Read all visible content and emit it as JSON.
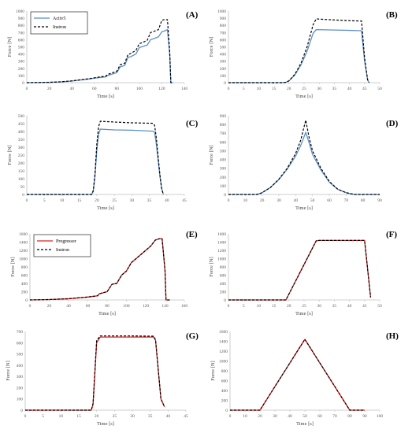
{
  "figure": {
    "colors": {
      "axis": "#bfbfbf",
      "tick_text": "#595959",
      "label_text": "#404040"
    }
  },
  "chart_data": [
    {
      "panel": "(A)",
      "type": "line",
      "xlabel": "Time [s]",
      "ylabel": "Force [N]",
      "xlim": [
        0,
        140
      ],
      "ylim": [
        0,
        1000
      ],
      "xticks": [
        0,
        20,
        40,
        60,
        80,
        100,
        120,
        140
      ],
      "yticks": [
        0,
        100,
        200,
        300,
        400,
        500,
        600,
        700,
        800,
        900,
        1000
      ],
      "legend": {
        "position": "top-left",
        "entries": [
          "Activ5",
          "Instron"
        ]
      },
      "series": [
        {
          "name": "Activ5",
          "color": "#5b8fc9",
          "dash": "solid",
          "x": [
            0,
            10,
            20,
            30,
            40,
            50,
            55,
            60,
            65,
            70,
            72,
            80,
            83,
            87,
            90,
            92,
            97,
            100,
            102,
            107,
            110,
            112,
            117,
            120,
            122,
            125,
            127,
            128,
            130
          ],
          "y": [
            0,
            2,
            5,
            10,
            22,
            42,
            50,
            62,
            72,
            80,
            100,
            140,
            220,
            240,
            355,
            360,
            400,
            490,
            500,
            525,
            600,
            610,
            640,
            710,
            720,
            740,
            400,
            0,
            0
          ]
        },
        {
          "name": "Instron",
          "color": "#000000",
          "dash": "dashed",
          "x": [
            0,
            10,
            20,
            30,
            40,
            50,
            55,
            60,
            65,
            70,
            72,
            80,
            83,
            87,
            90,
            92,
            97,
            100,
            102,
            107,
            110,
            112,
            117,
            120,
            122,
            125,
            127,
            128,
            130
          ],
          "y": [
            0,
            2,
            5,
            12,
            25,
            45,
            55,
            68,
            80,
            90,
            115,
            160,
            250,
            270,
            395,
            405,
            450,
            545,
            555,
            590,
            700,
            710,
            740,
            870,
            880,
            880,
            430,
            0,
            0
          ]
        }
      ]
    },
    {
      "panel": "(B)",
      "type": "line",
      "xlabel": "Time [s]",
      "ylabel": "Force [N]",
      "xlim": [
        0,
        50
      ],
      "ylim": [
        0,
        1000
      ],
      "xticks": [
        0,
        5,
        10,
        15,
        20,
        25,
        30,
        35,
        40,
        45,
        50
      ],
      "yticks": [
        0,
        100,
        200,
        300,
        400,
        500,
        600,
        700,
        800,
        900,
        1000
      ],
      "series": [
        {
          "color": "#5b8fc9",
          "dash": "solid",
          "x": [
            0,
            18,
            19,
            20,
            22,
            24,
            26,
            28,
            29,
            35,
            40,
            44,
            45,
            46,
            46.5
          ],
          "y": [
            0,
            0,
            5,
            25,
            110,
            250,
            440,
            690,
            740,
            735,
            730,
            725,
            300,
            40,
            0
          ]
        },
        {
          "color": "#000000",
          "dash": "dashed",
          "x": [
            0,
            18,
            19,
            20,
            22,
            24,
            26,
            28,
            29,
            35,
            40,
            44,
            45,
            46,
            46.5
          ],
          "y": [
            0,
            0,
            5,
            25,
            120,
            275,
            500,
            810,
            890,
            875,
            865,
            860,
            350,
            40,
            0
          ]
        }
      ]
    },
    {
      "panel": "(C)",
      "type": "line",
      "xlabel": "Time [s]",
      "ylabel": "Force [N]",
      "xlim": [
        0,
        45
      ],
      "ylim": [
        0,
        500
      ],
      "xticks": [
        0,
        5,
        10,
        15,
        20,
        25,
        30,
        35,
        40,
        45
      ],
      "yticks": [
        0,
        50,
        100,
        150,
        200,
        250,
        300,
        350,
        400,
        450,
        500
      ],
      "series": [
        {
          "color": "#5b8fc9",
          "dash": "solid",
          "x": [
            0,
            18.5,
            19,
            19.5,
            20,
            20.5,
            21,
            25,
            30,
            36,
            36.5,
            37,
            38,
            38.5,
            39
          ],
          "y": [
            0,
            0,
            20,
            120,
            280,
            380,
            415,
            410,
            408,
            402,
            395,
            320,
            120,
            40,
            0
          ]
        },
        {
          "color": "#000000",
          "dash": "dashed",
          "x": [
            0,
            18.5,
            19,
            19.5,
            20,
            20.5,
            21,
            25,
            30,
            36,
            36.5,
            37,
            38,
            38.5,
            39
          ],
          "y": [
            0,
            0,
            25,
            140,
            320,
            430,
            465,
            460,
            455,
            452,
            440,
            360,
            130,
            40,
            0
          ]
        }
      ]
    },
    {
      "panel": "(D)",
      "type": "line",
      "xlabel": "Time [s]",
      "ylabel": "Force [N]",
      "xlim": [
        0,
        90
      ],
      "ylim": [
        0,
        900
      ],
      "xticks": [
        0,
        10,
        20,
        30,
        40,
        50,
        60,
        70,
        80,
        90
      ],
      "yticks": [
        0,
        100,
        200,
        300,
        400,
        500,
        600,
        700,
        800,
        900
      ],
      "series": [
        {
          "color": "#5b8fc9",
          "dash": "solid",
          "x": [
            0,
            17,
            20,
            25,
            30,
            35,
            40,
            43,
            46,
            48,
            50,
            55,
            60,
            65,
            70,
            75,
            80,
            90
          ],
          "y": [
            0,
            0,
            20,
            80,
            170,
            290,
            440,
            560,
            710,
            590,
            460,
            280,
            140,
            60,
            20,
            0,
            0,
            0
          ]
        },
        {
          "color": "#000000",
          "dash": "dashed",
          "x": [
            0,
            17,
            20,
            25,
            30,
            35,
            40,
            43,
            46,
            48,
            50,
            55,
            60,
            65,
            70,
            75,
            80,
            90
          ],
          "y": [
            0,
            0,
            20,
            80,
            175,
            300,
            470,
            620,
            850,
            650,
            500,
            300,
            150,
            60,
            20,
            0,
            0,
            0
          ]
        }
      ]
    },
    {
      "panel": "(E)",
      "type": "line",
      "xlabel": "Time [s]",
      "ylabel": "Force [N]",
      "xlim": [
        0,
        160
      ],
      "ylim": [
        0,
        1600
      ],
      "xticks": [
        0,
        20,
        40,
        60,
        80,
        100,
        120,
        140,
        160
      ],
      "yticks": [
        0,
        200,
        400,
        600,
        800,
        1000,
        1200,
        1400,
        1600
      ],
      "legend": {
        "position": "top-left",
        "entries": [
          "Progressor",
          "Instron"
        ]
      },
      "series": [
        {
          "name": "Progressor",
          "color": "#e02020",
          "dash": "solid",
          "x": [
            0,
            20,
            40,
            60,
            70,
            72,
            80,
            85,
            90,
            95,
            100,
            105,
            110,
            115,
            120,
            125,
            130,
            134,
            137,
            140,
            141,
            145
          ],
          "y": [
            0,
            10,
            30,
            70,
            100,
            150,
            200,
            380,
            400,
            600,
            700,
            900,
            1000,
            1100,
            1200,
            1300,
            1450,
            1480,
            1480,
            700,
            0,
            0
          ]
        },
        {
          "name": "Instron",
          "color": "#000000",
          "dash": "dashed",
          "x": [
            0,
            20,
            40,
            60,
            70,
            72,
            80,
            85,
            90,
            95,
            100,
            105,
            110,
            115,
            120,
            125,
            130,
            134,
            137,
            140,
            141,
            145
          ],
          "y": [
            0,
            10,
            30,
            70,
            100,
            150,
            200,
            380,
            400,
            600,
            700,
            900,
            1000,
            1100,
            1200,
            1300,
            1450,
            1480,
            1480,
            700,
            0,
            0
          ]
        }
      ]
    },
    {
      "panel": "(F)",
      "type": "line",
      "xlabel": "Time [s]",
      "ylabel": "Force [N]",
      "xlim": [
        0,
        50
      ],
      "ylim": [
        0,
        1600
      ],
      "xticks": [
        0,
        5,
        10,
        15,
        20,
        25,
        30,
        35,
        40,
        45,
        50
      ],
      "yticks": [
        0,
        200,
        400,
        600,
        800,
        1000,
        1200,
        1400,
        1600
      ],
      "series": [
        {
          "color": "#e02020",
          "dash": "solid",
          "x": [
            0,
            19,
            29,
            30,
            45,
            47
          ],
          "y": [
            0,
            0,
            1430,
            1440,
            1440,
            60
          ]
        },
        {
          "color": "#000000",
          "dash": "dashed",
          "x": [
            0,
            19,
            29,
            30,
            45,
            47
          ],
          "y": [
            0,
            0,
            1430,
            1440,
            1440,
            60
          ]
        }
      ]
    },
    {
      "panel": "(G)",
      "type": "line",
      "xlabel": "Time [s]",
      "ylabel": "Force [N]",
      "xlim": [
        0,
        45
      ],
      "ylim": [
        0,
        700
      ],
      "xticks": [
        0,
        5,
        10,
        15,
        20,
        25,
        30,
        35,
        40,
        45
      ],
      "yticks": [
        0,
        100,
        200,
        300,
        400,
        500,
        600,
        700
      ],
      "series": [
        {
          "color": "#e02020",
          "dash": "solid",
          "x": [
            0,
            18.5,
            19,
            20,
            21,
            30,
            36,
            36.5,
            38,
            39
          ],
          "y": [
            0,
            0,
            50,
            600,
            650,
            650,
            650,
            620,
            100,
            30
          ]
        },
        {
          "color": "#000000",
          "dash": "dashed",
          "x": [
            0,
            18.5,
            19,
            20,
            21,
            30,
            36,
            36.5,
            38,
            39
          ],
          "y": [
            0,
            0,
            60,
            620,
            660,
            660,
            658,
            625,
            100,
            30
          ]
        }
      ]
    },
    {
      "panel": "(H)",
      "type": "line",
      "xlabel": "Time [s]",
      "ylabel": "Force [N]",
      "xlim": [
        0,
        100
      ],
      "ylim": [
        0,
        1600
      ],
      "xticks": [
        0,
        10,
        20,
        30,
        40,
        50,
        60,
        70,
        80,
        90,
        100
      ],
      "yticks": [
        0,
        200,
        400,
        600,
        800,
        1000,
        1200,
        1400,
        1600
      ],
      "series": [
        {
          "color": "#e02020",
          "dash": "solid",
          "x": [
            0,
            20,
            50,
            80,
            90
          ],
          "y": [
            0,
            0,
            1440,
            0,
            0
          ]
        },
        {
          "color": "#000000",
          "dash": "dashed",
          "x": [
            0,
            20,
            50,
            80,
            90
          ],
          "y": [
            0,
            0,
            1440,
            0,
            0
          ]
        }
      ]
    }
  ]
}
